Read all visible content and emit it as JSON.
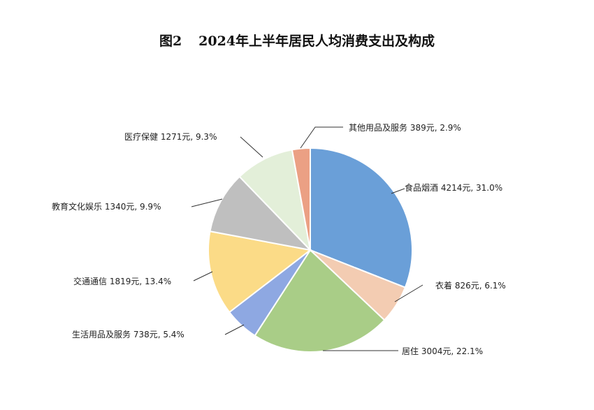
{
  "figure_number": "图2",
  "chart_data": {
    "type": "pie",
    "title": "2024年上半年居民人均消费支出及构成",
    "slices": [
      {
        "label": "食品烟酒",
        "value": 4214,
        "unit": "元",
        "percent": "31.0%",
        "color": "#6a9fd8",
        "text": "食品烟酒  4214元, 31.0%"
      },
      {
        "label": "衣着",
        "value": 826,
        "unit": "元",
        "percent": "6.1%",
        "color": "#f3ccb2",
        "text": "衣着  826元, 6.1%"
      },
      {
        "label": "居住",
        "value": 3004,
        "unit": "元",
        "percent": "22.1%",
        "color": "#a9cd87",
        "text": "居住  3004元, 22.1%"
      },
      {
        "label": "生活用品及服务",
        "value": 738,
        "unit": "元",
        "percent": "5.4%",
        "color": "#8ea8e2",
        "text": "生活用品及服务  738元, 5.4%"
      },
      {
        "label": "交通通信",
        "value": 1819,
        "unit": "元",
        "percent": "13.4%",
        "color": "#fbdb87",
        "text": "交通通信  1819元, 13.4%"
      },
      {
        "label": "教育文化娱乐",
        "value": 1340,
        "unit": "元",
        "percent": "9.9%",
        "color": "#bfbfbf",
        "text": "教育文化娱乐  1340元, 9.9%"
      },
      {
        "label": "医疗保健",
        "value": 1271,
        "unit": "元",
        "percent": "9.3%",
        "color": "#e3efd9",
        "text": "医疗保健  1271元, 9.3%"
      },
      {
        "label": "其他用品及服务",
        "value": 389,
        "unit": "元",
        "percent": "2.9%",
        "color": "#eba084",
        "text": "其他用品及服务  389元, 2.9%"
      }
    ]
  }
}
